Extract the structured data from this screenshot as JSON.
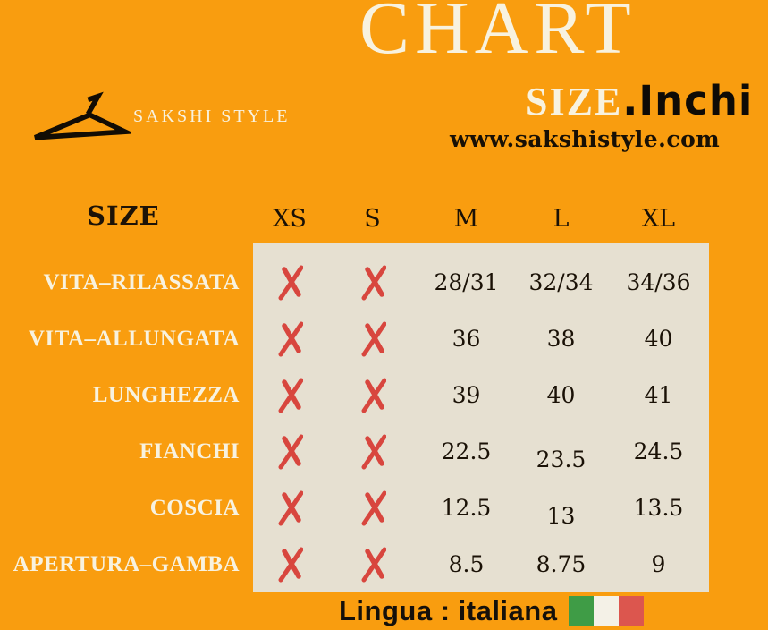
{
  "title": {
    "main": "CHART",
    "sub_primary": "SIZE",
    "sub_secondary": ".Inchi"
  },
  "brand": {
    "logo_icon": "hanger-icon",
    "name": "SAKSHI STYLE",
    "website": "www.sakshistyle.com"
  },
  "chart_data": {
    "type": "table",
    "title": "CHART SIZE.Inchi",
    "corner_label": "SIZE",
    "columns": [
      "XS",
      "S",
      "M",
      "L",
      "XL"
    ],
    "unavailable_marker": "X",
    "rows": [
      {
        "label": "VITA–RILASSATA",
        "values": [
          "X",
          "X",
          "28/31",
          "32/34",
          "34/36"
        ]
      },
      {
        "label": "VITA–ALLUNGATA",
        "values": [
          "X",
          "X",
          "36",
          "38",
          "40"
        ]
      },
      {
        "label": "LUNGHEZZA",
        "values": [
          "X",
          "X",
          "39",
          "40",
          "41"
        ]
      },
      {
        "label": "FIANCHI",
        "values": [
          "X",
          "X",
          "22.5",
          "23.5",
          "24.5"
        ]
      },
      {
        "label": "COSCIA",
        "values": [
          "X",
          "X",
          "12.5",
          "13",
          "13.5"
        ]
      },
      {
        "label": "APERTURA–GAMBA",
        "values": [
          "X",
          "X",
          "8.5",
          "8.75",
          "9"
        ]
      }
    ]
  },
  "footer": {
    "language_text": "Lingua : italiana",
    "flag_icon": "italy-flag-icon"
  },
  "colors": {
    "background": "#F99D0F",
    "table_background": "#E6E0D1",
    "cross_mark": "#D8463E",
    "cream_text": "#F8F2DF",
    "dark_text": "#1A1106",
    "flag_green": "#3F9C46",
    "flag_white": "#F4F1E7",
    "flag_red": "#DC564E"
  }
}
